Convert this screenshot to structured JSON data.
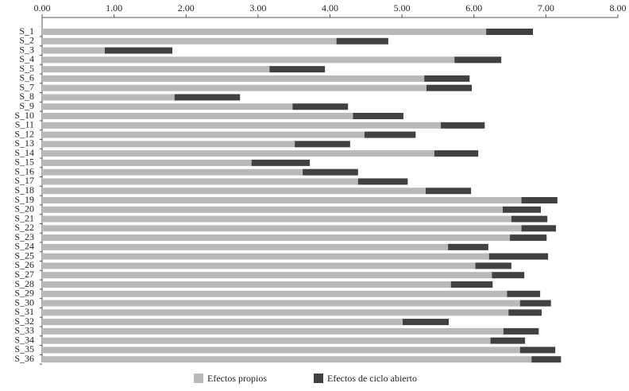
{
  "chart_data": {
    "type": "stacked-barh",
    "categories": [
      "S_1",
      "S_2",
      "S_3",
      "S_4",
      "S_5",
      "S_6",
      "S_7",
      "S_8",
      "S_9",
      "S_10",
      "S_11",
      "S_12",
      "S_13",
      "S_14",
      "S_15",
      "S_16",
      "S_17",
      "S_18",
      "S_19",
      "S_20",
      "S_21",
      "S_22",
      "S_23",
      "S_24",
      "S_25",
      "S_26",
      "S_27",
      "S_28",
      "S_29",
      "S_30",
      "S_31",
      "S_32",
      "S_33",
      "S_34",
      "S_35",
      "S_36"
    ],
    "series": [
      {
        "name": "Efectos propios",
        "color": "#b9b9b9",
        "values": [
          6.17,
          4.09,
          0.87,
          5.73,
          3.16,
          5.31,
          5.34,
          1.84,
          3.48,
          4.32,
          5.54,
          4.48,
          3.51,
          5.45,
          2.91,
          3.62,
          4.39,
          5.33,
          6.66,
          6.4,
          6.52,
          6.66,
          6.5,
          5.64,
          6.21,
          6.02,
          6.25,
          5.68,
          6.46,
          6.64,
          6.48,
          5.01,
          6.41,
          6.23,
          6.64,
          6.8
        ]
      },
      {
        "name": "Efectos de ciclo abierto",
        "color": "#414141",
        "values": [
          0.65,
          0.72,
          0.94,
          0.65,
          0.77,
          0.63,
          0.63,
          0.91,
          0.77,
          0.7,
          0.61,
          0.71,
          0.77,
          0.61,
          0.81,
          0.77,
          0.69,
          0.63,
          0.5,
          0.53,
          0.5,
          0.48,
          0.51,
          0.56,
          0.82,
          0.5,
          0.45,
          0.58,
          0.46,
          0.43,
          0.46,
          0.64,
          0.49,
          0.48,
          0.49,
          0.41
        ]
      }
    ],
    "xlim": [
      0,
      8
    ],
    "xticks": [
      {
        "value": 0,
        "label": "0.00"
      },
      {
        "value": 1,
        "label": "1.00"
      },
      {
        "value": 2,
        "label": "2.00"
      },
      {
        "value": 3,
        "label": "3.00"
      },
      {
        "value": 4,
        "label": "4.00"
      },
      {
        "value": 5,
        "label": "5.00"
      },
      {
        "value": 6,
        "label": "6.00"
      },
      {
        "value": 7,
        "label": "7.00"
      },
      {
        "value": 8,
        "label": "8.00"
      }
    ],
    "legend": "bottom"
  }
}
